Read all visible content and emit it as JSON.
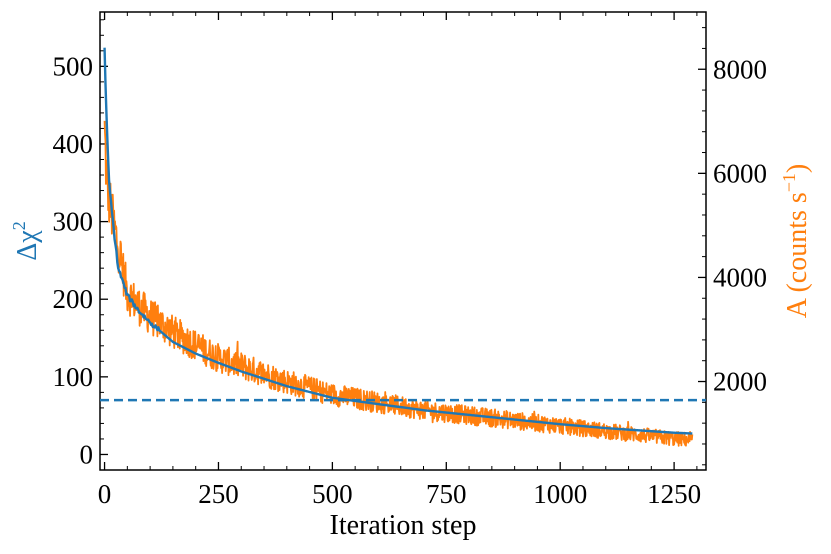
{
  "chart_data": {
    "type": "line",
    "title": "",
    "xlabel": "Iteration step",
    "ylabel_left": "Δχ",
    "ylabel_left_superscript": "2",
    "ylabel_right": "A (counts s",
    "ylabel_right_superscript": "−1",
    "ylabel_right_close": ")",
    "xlim": [
      -10,
      1320
    ],
    "ylim_left": [
      -20,
      570
    ],
    "ylim_right": [
      300,
      9100
    ],
    "xticks": [
      0,
      250,
      500,
      750,
      1000,
      1250
    ],
    "xtick_labels": [
      "0",
      "250",
      "500",
      "750",
      "1000",
      "1250"
    ],
    "yticks_left": [
      0,
      100,
      200,
      300,
      400,
      500
    ],
    "ytick_labels_left": [
      "0",
      "100",
      "200",
      "300",
      "400",
      "500"
    ],
    "yticks_right": [
      2000,
      4000,
      6000,
      8000
    ],
    "ytick_labels_right": [
      "2000",
      "4000",
      "6000",
      "8000"
    ],
    "colors": {
      "delta_chi2": "#1f77b4",
      "amplitude": "#ff7f0e"
    },
    "threshold": {
      "value": 70,
      "axis": "left",
      "style": "dashed"
    },
    "series": [
      {
        "name": "Δχ²",
        "axis": "left",
        "x": [
          0,
          5,
          10,
          20,
          30,
          50,
          75,
          100,
          150,
          200,
          250,
          300,
          400,
          500,
          600,
          700,
          800,
          900,
          1000,
          1100,
          1200,
          1250,
          1290
        ],
        "values": [
          522,
          420,
          350,
          290,
          240,
          205,
          185,
          170,
          145,
          130,
          118,
          107,
          88,
          73,
          65,
          57,
          51,
          45,
          39,
          34,
          30,
          28,
          27
        ]
      },
      {
        "name": "A (counts s⁻¹)",
        "axis": "right",
        "noisy": true,
        "x": [
          0,
          5,
          10,
          20,
          30,
          50,
          75,
          100,
          150,
          200,
          250,
          300,
          400,
          500,
          600,
          700,
          800,
          900,
          1000,
          1100,
          1200,
          1250,
          1290
        ],
        "values": [
          6800,
          5800,
          5500,
          5000,
          4600,
          3700,
          3450,
          3250,
          2950,
          2700,
          2450,
          2300,
          2000,
          1750,
          1600,
          1450,
          1350,
          1250,
          1150,
          1050,
          950,
          900,
          880
        ]
      }
    ]
  }
}
